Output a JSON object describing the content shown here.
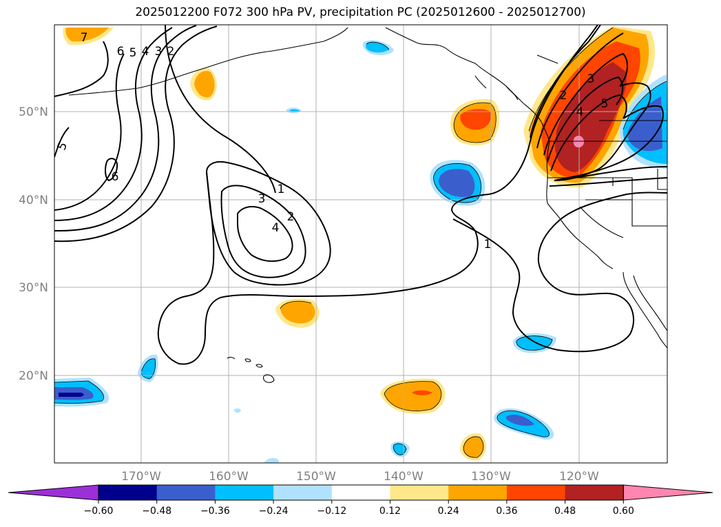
{
  "title": "2025012200 F072 300 hPa PV, precipitation PC (2025012600 - 2025012700)",
  "lat_labels": [
    "50°N",
    "40°N",
    "30°N",
    "20°N"
  ],
  "lon_labels": [
    "170°W",
    "160°W",
    "150°W",
    "140°W",
    "130°W",
    "120°W"
  ],
  "colorbar": {
    "ticks": [
      "−0.60",
      "−0.48",
      "−0.36",
      "−0.24",
      "−0.12",
      "0.12",
      "0.24",
      "0.36",
      "0.48",
      "0.60"
    ],
    "colors": [
      "#9b30d8",
      "#00008b",
      "#3a5fcd",
      "#00bfff",
      "#b0e2ff",
      "#ffffff",
      "#ffe78a",
      "#ffa500",
      "#ff4500",
      "#b22222",
      "#ff86b0"
    ]
  },
  "contour_labels": [
    "7",
    "6",
    "5",
    "4",
    "3",
    "2",
    "5",
    "6",
    "1",
    "3",
    "2",
    "4",
    "1",
    "2",
    "3",
    "4",
    "5"
  ],
  "colors": {
    "grid": "#b0b0b0",
    "tick_label": "#808080",
    "coast": "#000000"
  }
}
